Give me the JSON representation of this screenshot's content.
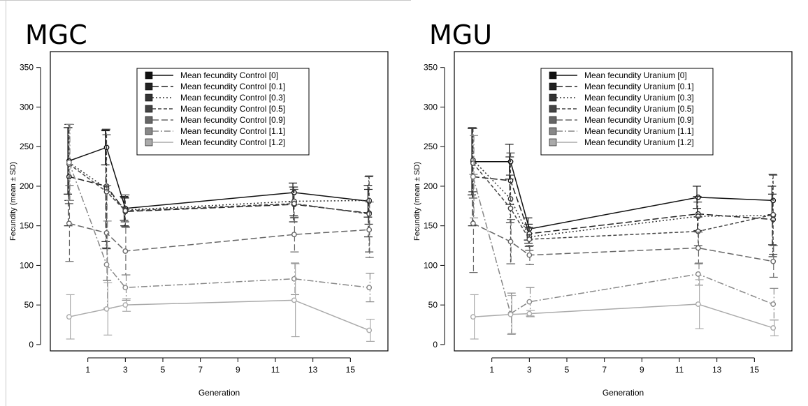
{
  "chart_data": [
    {
      "type": "line",
      "title": "MGC",
      "xlabel": "Generation",
      "ylabel": "Fecundity (mean ± SD)",
      "xlim": [
        -1,
        17
      ],
      "ylim": [
        -8,
        370
      ],
      "xticks": [
        1,
        3,
        5,
        7,
        9,
        11,
        13,
        15
      ],
      "yticks": [
        0,
        50,
        100,
        150,
        200,
        250,
        300,
        350
      ],
      "legend_position": "top-right",
      "x": [
        0,
        2,
        3,
        12,
        16
      ],
      "series": [
        {
          "name": "Mean fecundity Control [0]",
          "color": "#111111",
          "dash": "solid",
          "values": [
            232,
            249,
            172,
            192,
            181
          ],
          "sd": [
            42,
            22,
            15,
            12,
            20
          ]
        },
        {
          "name": "Mean fecundity Control [0.1]",
          "color": "#222222",
          "dash": "long",
          "values": [
            212,
            200,
            168,
            177,
            166
          ],
          "sd": [
            62,
            70,
            18,
            22,
            30
          ]
        },
        {
          "name": "Mean fecundity Control [0.3]",
          "color": "#333333",
          "dash": "dot",
          "values": [
            230,
            197,
            170,
            181,
            182
          ],
          "sd": [
            48,
            75,
            15,
            18,
            30
          ]
        },
        {
          "name": "Mean fecundity Control [0.5]",
          "color": "#444444",
          "dash": "short",
          "values": [
            228,
            193,
            169,
            178,
            165
          ],
          "sd": [
            50,
            72,
            20,
            18,
            48
          ]
        },
        {
          "name": "Mean fecundity Control [0.9]",
          "color": "#666666",
          "dash": "long",
          "values": [
            153,
            141,
            118,
            139,
            145
          ],
          "sd": [
            48,
            60,
            30,
            22,
            35
          ]
        },
        {
          "name": "Mean fecundity Control [1.1]",
          "color": "#888888",
          "dash": "dashdot",
          "values": [
            230,
            101,
            72,
            83,
            72
          ],
          "sd": [
            48,
            55,
            16,
            20,
            18
          ]
        },
        {
          "name": "Mean fecundity Control [1.2]",
          "color": "#aaaaaa",
          "dash": "solid",
          "values": [
            35,
            45,
            50,
            56,
            18
          ],
          "sd": [
            28,
            33,
            8,
            46,
            14
          ]
        }
      ]
    },
    {
      "type": "line",
      "title": "MGU",
      "xlabel": "Generation",
      "ylabel": "Fecundity (mean ± SD)",
      "xlim": [
        -1,
        17
      ],
      "ylim": [
        -8,
        370
      ],
      "xticks": [
        1,
        3,
        5,
        7,
        9,
        11,
        13,
        15
      ],
      "yticks": [
        0,
        50,
        100,
        150,
        200,
        250,
        300,
        350
      ],
      "legend_position": "top-right",
      "x": [
        0,
        2,
        3,
        12,
        16
      ],
      "series": [
        {
          "name": "Mean fecundity Uranium [0]",
          "color": "#111111",
          "dash": "solid",
          "values": [
            231,
            231,
            146,
            186,
            182
          ],
          "sd": [
            42,
            22,
            14,
            14,
            18
          ]
        },
        {
          "name": "Mean fecundity Uranium [0.1]",
          "color": "#222222",
          "dash": "long",
          "values": [
            212,
            207,
            140,
            165,
            158
          ],
          "sd": [
            62,
            30,
            12,
            22,
            32
          ]
        },
        {
          "name": "Mean fecundity Uranium [0.3]",
          "color": "#333333",
          "dash": "dot",
          "values": [
            233,
            184,
            136,
            162,
            163
          ],
          "sd": [
            40,
            30,
            12,
            18,
            52
          ]
        },
        {
          "name": "Mean fecundity Uranium [0.5]",
          "color": "#444444",
          "dash": "short",
          "values": [
            229,
            172,
            133,
            143,
            164
          ],
          "sd": [
            44,
            70,
            14,
            18,
            50
          ]
        },
        {
          "name": "Mean fecundity Uranium [0.9]",
          "color": "#666666",
          "dash": "long",
          "values": [
            153,
            130,
            113,
            122,
            105
          ],
          "sd": [
            62,
            28,
            12,
            20,
            20
          ]
        },
        {
          "name": "Mean fecundity Uranium [1.1]",
          "color": "#888888",
          "dash": "dashdot",
          "values": [
            212,
            39,
            54,
            89,
            51
          ],
          "sd": [
            52,
            26,
            18,
            14,
            20
          ]
        },
        {
          "name": "Mean fecundity Uranium [1.2]",
          "color": "#aaaaaa",
          "dash": "solid",
          "values": [
            35,
            38,
            39,
            51,
            21
          ],
          "sd": [
            28,
            24,
            4,
            31,
            10
          ]
        }
      ]
    }
  ]
}
